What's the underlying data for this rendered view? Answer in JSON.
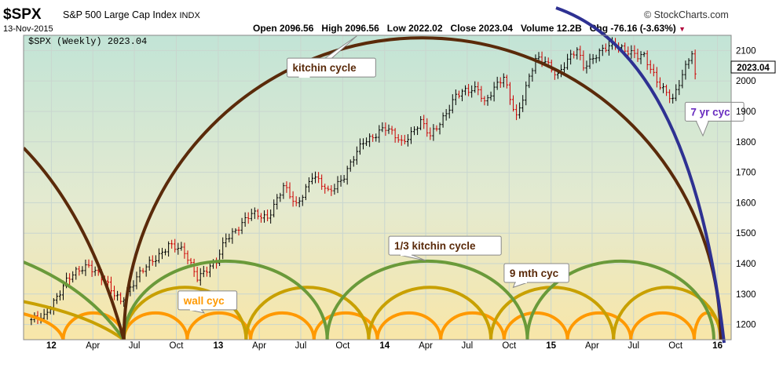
{
  "header": {
    "symbol": "$SPX",
    "name": "S&P 500 Large Cap Index",
    "exchange": "INDX",
    "date": "13-Nov-2015",
    "brand": "© StockCharts.com",
    "open": "Open 2096.56",
    "high": "High 2096.56",
    "low": "Low 2022.02",
    "close": "Close 2023.04",
    "volume": "Volume 12.2B",
    "chg": "Chg -76.16 (-3.63%)",
    "chg_marker": "▼"
  },
  "chart_data": {
    "type": "candlestick",
    "legend": "$SPX (Weekly) 2023.04",
    "last_price_label": "2023.04",
    "last_price": 2023.04,
    "ylim": [
      1150,
      2150
    ],
    "y_ticks": [
      1200,
      1300,
      1400,
      1500,
      1600,
      1700,
      1800,
      1900,
      2000,
      2100
    ],
    "x_range": [
      "2011-11-01",
      "2016-01-31"
    ],
    "x_ticks": [
      {
        "label": "12",
        "date": "2012-01-01",
        "bold": true
      },
      {
        "label": "Apr",
        "date": "2012-04-01"
      },
      {
        "label": "Jul",
        "date": "2012-07-01"
      },
      {
        "label": "Oct",
        "date": "2012-10-01"
      },
      {
        "label": "13",
        "date": "2013-01-01",
        "bold": true
      },
      {
        "label": "Apr",
        "date": "2013-04-01"
      },
      {
        "label": "Jul",
        "date": "2013-07-01"
      },
      {
        "label": "Oct",
        "date": "2013-10-01"
      },
      {
        "label": "14",
        "date": "2014-01-01",
        "bold": true
      },
      {
        "label": "Apr",
        "date": "2014-04-01"
      },
      {
        "label": "Jul",
        "date": "2014-07-01"
      },
      {
        "label": "Oct",
        "date": "2014-10-01"
      },
      {
        "label": "15",
        "date": "2015-01-01",
        "bold": true
      },
      {
        "label": "Apr",
        "date": "2015-04-01"
      },
      {
        "label": "Jul",
        "date": "2015-07-01"
      },
      {
        "label": "Oct",
        "date": "2015-10-01"
      },
      {
        "label": "16",
        "date": "2016-01-01",
        "bold": true
      }
    ],
    "price_path": [
      [
        "2011-11-18",
        1216
      ],
      [
        "2011-12-16",
        1220
      ],
      [
        "2012-01-06",
        1278
      ],
      [
        "2012-02-03",
        1345
      ],
      [
        "2012-03-23",
        1397
      ],
      [
        "2012-04-13",
        1370
      ],
      [
        "2012-05-18",
        1295
      ],
      [
        "2012-06-01",
        1278
      ],
      [
        "2012-07-06",
        1355
      ],
      [
        "2012-08-17",
        1418
      ],
      [
        "2012-09-14",
        1465
      ],
      [
        "2012-10-19",
        1433
      ],
      [
        "2012-11-16",
        1360
      ],
      [
        "2012-12-28",
        1402
      ],
      [
        "2013-01-18",
        1485
      ],
      [
        "2013-03-15",
        1560
      ],
      [
        "2013-04-19",
        1555
      ],
      [
        "2013-05-24",
        1650
      ],
      [
        "2013-06-21",
        1592
      ],
      [
        "2013-07-26",
        1690
      ],
      [
        "2013-08-30",
        1633
      ],
      [
        "2013-10-04",
        1690
      ],
      [
        "2013-11-15",
        1798
      ],
      [
        "2013-12-31",
        1848
      ],
      [
        "2014-02-07",
        1797
      ],
      [
        "2014-03-21",
        1866
      ],
      [
        "2014-04-11",
        1815
      ],
      [
        "2014-06-06",
        1950
      ],
      [
        "2014-07-25",
        1980
      ],
      [
        "2014-08-08",
        1931
      ],
      [
        "2014-09-19",
        2010
      ],
      [
        "2014-10-17",
        1886
      ],
      [
        "2014-11-28",
        2067
      ],
      [
        "2014-12-19",
        2070
      ],
      [
        "2015-01-16",
        2019
      ],
      [
        "2015-02-27",
        2105
      ],
      [
        "2015-03-13",
        2053
      ],
      [
        "2015-05-22",
        2126
      ],
      [
        "2015-07-10",
        2076
      ],
      [
        "2015-07-24",
        2080
      ],
      [
        "2015-08-28",
        1988
      ],
      [
        "2015-09-25",
        1932
      ],
      [
        "2015-10-30",
        2079
      ],
      [
        "2015-11-06",
        2099
      ],
      [
        "2015-11-13",
        2023.04
      ]
    ],
    "cycles": [
      {
        "name": "7 yr cycle",
        "color": "#2e3192",
        "kind": "seven",
        "width": 4
      },
      {
        "name": "kitchin cycle",
        "color": "#5a2a0a",
        "kind": "arcs",
        "width": 4,
        "starts": [
          "2012-06-08"
        ],
        "ends": [
          "2016-01-08"
        ],
        "peak": 2142,
        "left_partial": {
          "from_y": 1780,
          "to": "2012-06-08"
        }
      },
      {
        "name": "1/3 kitchin cycle",
        "color": "#6a9a3a",
        "kind": "arcs",
        "width": 4,
        "starts": [
          "2012-06-08",
          "2013-08-28",
          "2014-11-10",
          "2015-12-24"
        ],
        "peak": 1408,
        "left_partial": {
          "from_y": 1405,
          "to": "2012-06-08"
        }
      },
      {
        "name": "9 mth cyc",
        "color": "#c8a000",
        "kind": "arcs",
        "width": 4,
        "starts": [
          "2012-06-08",
          "2013-03-03",
          "2013-11-27",
          "2014-08-22",
          "2015-05-18",
          "2016-01-08"
        ],
        "peak": 1322,
        "left_partial": {
          "from_y": 1275,
          "to": "2012-06-08"
        }
      },
      {
        "name": "wall cyc",
        "color": "#ff9900",
        "kind": "arcs",
        "width": 4,
        "starts": [
          "2012-06-08",
          "2012-10-25",
          "2013-03-13",
          "2013-07-30",
          "2013-12-16",
          "2014-05-04",
          "2014-09-20",
          "2015-02-06",
          "2015-06-25",
          "2015-11-11"
        ],
        "end_last": "2016-01-08",
        "peak": 1238,
        "left_partial": {
          "from_y": 1235,
          "to": "2012-01-27",
          "extra_arc_to": "2012-06-08"
        }
      }
    ],
    "annotations": [
      {
        "text": "kitchin cycle",
        "color": "#5a2a0a",
        "date": "2013-06-01",
        "price": 2075,
        "pointer": [
          "2013-11-01",
          2148
        ]
      },
      {
        "text": "1/3 kitchin cycle",
        "color": "#5a2a0a",
        "date": "2014-01-10",
        "price": 1490,
        "pointer": [
          "2014-04-01",
          1410
        ]
      },
      {
        "text": "9 mth cyc",
        "color": "#5a2a0a",
        "date": "2014-09-20",
        "price": 1400,
        "pointer": [
          "2014-10-10",
          1322
        ]
      },
      {
        "text": "wall cyc",
        "color": "#ff9900",
        "date": "2012-10-05",
        "price": 1310,
        "pointer": [
          "2012-12-01",
          1238
        ]
      },
      {
        "text": "7 yr cyc",
        "color": "#6a2ec0",
        "date": "2015-10-22",
        "price": 1930,
        "pointer": [
          "2015-11-30",
          1820
        ]
      }
    ]
  }
}
